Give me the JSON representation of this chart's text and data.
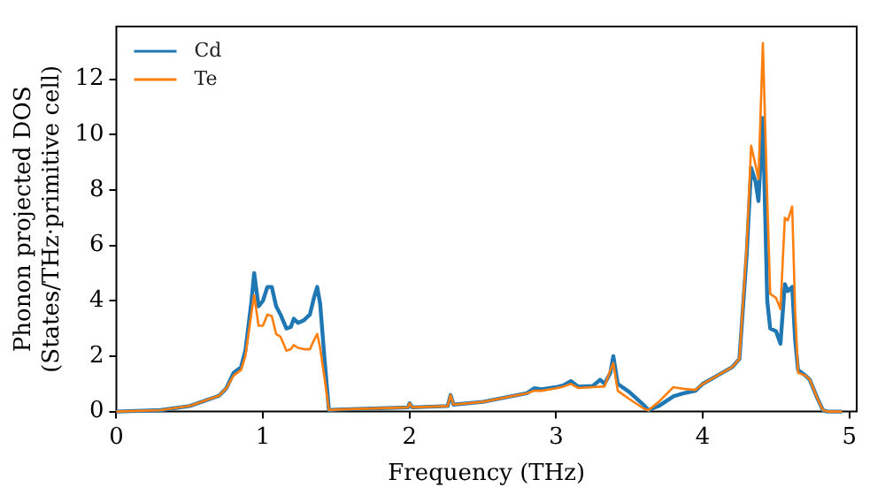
{
  "chart_data": {
    "type": "line",
    "xlabel": "Frequency (THz)",
    "ylabel": "Phonon projected DOS\n(States/THz·primitive cell)",
    "x": [
      0,
      0.3,
      0.5,
      0.7,
      0.75,
      0.8,
      0.85,
      0.88,
      0.92,
      0.94,
      0.97,
      1.0,
      1.03,
      1.06,
      1.09,
      1.12,
      1.16,
      1.19,
      1.21,
      1.24,
      1.28,
      1.32,
      1.35,
      1.37,
      1.39,
      1.42,
      1.45,
      1.5,
      1.99,
      2.0,
      2.02,
      2.26,
      2.28,
      2.3,
      2.5,
      2.8,
      2.85,
      2.9,
      3.0,
      3.05,
      3.1,
      3.15,
      3.25,
      3.3,
      3.33,
      3.37,
      3.39,
      3.42,
      3.5,
      3.6,
      3.63,
      3.7,
      3.8,
      3.87,
      3.95,
      4.0,
      4.1,
      4.2,
      4.25,
      4.3,
      4.33,
      4.36,
      4.38,
      4.41,
      4.44,
      4.46,
      4.5,
      4.53,
      4.56,
      4.58,
      4.61,
      4.63,
      4.65,
      4.7,
      4.73,
      4.78,
      4.82,
      4.85,
      4.95
    ],
    "series": [
      {
        "name": "Cd",
        "color": "#1f77b4",
        "values": [
          0,
          0.05,
          0.2,
          0.57,
          0.84,
          1.4,
          1.6,
          2.2,
          3.9,
          5.0,
          3.8,
          4.0,
          4.5,
          4.5,
          3.8,
          3.5,
          3.0,
          3.05,
          3.35,
          3.2,
          3.3,
          3.5,
          4.15,
          4.5,
          3.9,
          1.9,
          0.05,
          0.07,
          0.15,
          0.3,
          0.15,
          0.2,
          0.6,
          0.25,
          0.35,
          0.66,
          0.84,
          0.8,
          0.88,
          0.95,
          1.1,
          0.9,
          0.92,
          1.15,
          1.0,
          1.4,
          2.0,
          1.0,
          0.7,
          0.22,
          0.05,
          0.2,
          0.55,
          0.66,
          0.75,
          1.0,
          1.3,
          1.6,
          1.9,
          5.7,
          8.8,
          8.3,
          7.6,
          10.6,
          4.0,
          3.0,
          2.9,
          2.45,
          4.6,
          4.35,
          4.5,
          2.6,
          1.5,
          1.3,
          1.15,
          0.5,
          0.05,
          0,
          0
        ]
      },
      {
        "name": "Te",
        "color": "#ff7f0e",
        "values": [
          0,
          0.05,
          0.2,
          0.57,
          0.84,
          1.3,
          1.5,
          2.0,
          3.5,
          4.2,
          3.1,
          3.1,
          3.5,
          3.45,
          2.8,
          2.7,
          2.2,
          2.25,
          2.4,
          2.3,
          2.25,
          2.25,
          2.6,
          2.8,
          2.3,
          1.2,
          0.05,
          0.07,
          0.15,
          0.3,
          0.15,
          0.2,
          0.6,
          0.25,
          0.35,
          0.66,
          0.75,
          0.75,
          0.84,
          0.9,
          1.0,
          0.85,
          0.88,
          0.9,
          0.9,
          1.5,
          1.75,
          0.75,
          0.45,
          0.1,
          0.05,
          0.35,
          0.88,
          0.82,
          0.78,
          1.0,
          1.3,
          1.6,
          1.9,
          6.0,
          9.6,
          8.9,
          8.4,
          13.3,
          7.7,
          4.25,
          4.1,
          3.7,
          7.0,
          6.9,
          7.4,
          3.7,
          1.4,
          1.3,
          1.15,
          0.5,
          0.05,
          0,
          0
        ]
      }
    ],
    "xlim": [
      0,
      5.05
    ],
    "xticks": [
      0,
      1,
      2,
      3,
      4,
      5
    ],
    "ylim": [
      0,
      13.9
    ],
    "yticks": [
      0,
      2,
      4,
      6,
      8,
      10,
      12
    ],
    "legend": "top left",
    "grid": false,
    "marker": "none",
    "line_style": "solid"
  }
}
